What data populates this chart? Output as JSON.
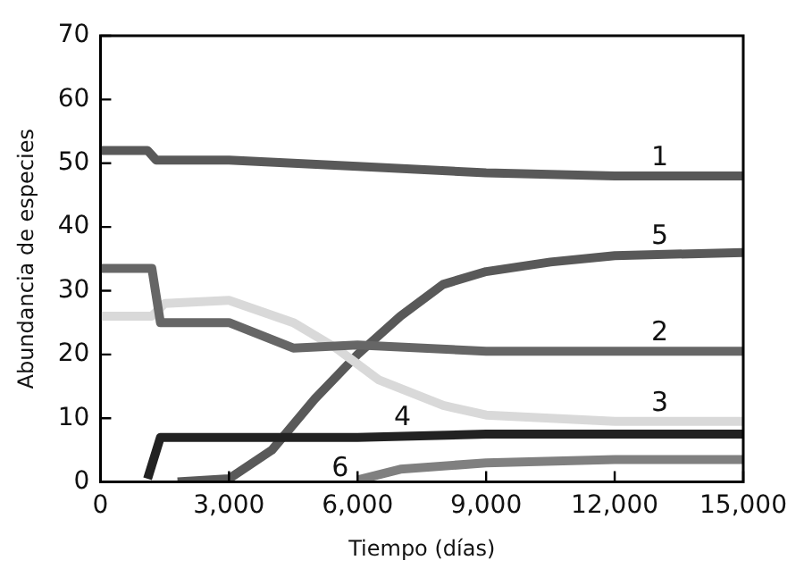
{
  "chart_data": {
    "type": "line",
    "xlabel": "Tiempo (días)",
    "ylabel": "Abundancia de especies",
    "xlim": [
      0,
      15000
    ],
    "xticks": [
      {
        "value": 0,
        "label": "0"
      },
      {
        "value": 3000,
        "label": "3,000"
      },
      {
        "value": 6000,
        "label": "6,000"
      },
      {
        "value": 9000,
        "label": "9,000"
      },
      {
        "value": 12000,
        "label": "12,000"
      },
      {
        "value": 15000,
        "label": "15,000"
      }
    ],
    "ylim": [
      0,
      70
    ],
    "yticks": [
      0,
      10,
      20,
      30,
      40,
      50,
      60,
      70
    ],
    "grid": false,
    "legend": false,
    "marker": "none",
    "line_style": "solid",
    "series": [
      {
        "name": "1",
        "color": "#595959",
        "x": [
          0,
          1100,
          1300,
          3000,
          6000,
          9000,
          12000,
          15000
        ],
        "values": [
          52,
          52,
          50.5,
          50.5,
          49.5,
          48.5,
          48,
          48
        ]
      },
      {
        "name": "2",
        "color": "#666666",
        "x": [
          0,
          1200,
          1400,
          3000,
          4500,
          6000,
          9000,
          12000,
          15000
        ],
        "values": [
          33.5,
          33.5,
          25,
          25,
          21,
          21.5,
          20.5,
          20.5,
          20.5
        ]
      },
      {
        "name": "3",
        "color": "#d9d9d9",
        "x": [
          0,
          1200,
          1500,
          3000,
          4500,
          5500,
          6500,
          8000,
          9000,
          12000,
          15000
        ],
        "values": [
          26,
          26,
          28,
          28.5,
          25,
          21,
          16,
          12,
          10.5,
          9.5,
          9.5
        ]
      },
      {
        "name": "4",
        "color": "#222222",
        "x": [
          1100,
          1400,
          3000,
          6000,
          9000,
          15000
        ],
        "values": [
          0.5,
          7,
          7,
          7,
          7.5,
          7.5
        ]
      },
      {
        "name": "5",
        "color": "#595959",
        "x": [
          1800,
          3000,
          4000,
          5000,
          6000,
          7000,
          8000,
          9000,
          10500,
          12000,
          15000
        ],
        "values": [
          0,
          0.5,
          5,
          13,
          20,
          26,
          31,
          33,
          34.5,
          35.5,
          36
        ]
      },
      {
        "name": "6",
        "color": "#808080",
        "x": [
          6000,
          7000,
          9000,
          12000,
          15000
        ],
        "values": [
          0.3,
          2,
          3,
          3.5,
          3.5
        ]
      }
    ]
  }
}
